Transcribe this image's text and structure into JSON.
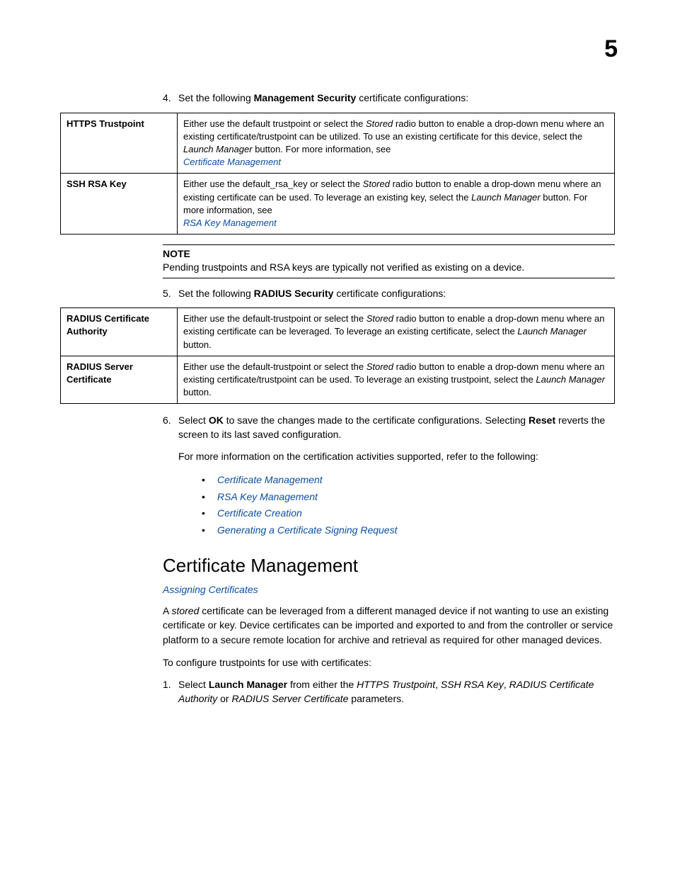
{
  "chapter_number": "5",
  "step4": {
    "num": "4.",
    "pre": "Set the following ",
    "bold": "Management Security",
    "post": " certificate configurations:"
  },
  "table1": {
    "rows": [
      {
        "label": "HTTPS Trustpoint",
        "t1": "Either use the default trustpoint or select the ",
        "i1": "Stored",
        "t2": " radio button to enable a drop-down menu where an existing certificate/trustpoint can be utilized. To use an existing certificate for this device, select the ",
        "i2": "Launch Manager",
        "t3": " button. For more information, see",
        "link": "Certificate Management"
      },
      {
        "label": "SSH RSA Key",
        "t1": "Either use the default_rsa_key or select the ",
        "i1": "Stored",
        "t2": " radio button to enable a drop-down menu where an existing certificate can be used. To leverage an existing key, select the ",
        "i2": "Launch Manager",
        "t3": " button. For more information, see",
        "link": "RSA Key Management"
      }
    ]
  },
  "note": {
    "title": "NOTE",
    "text": "Pending trustpoints and RSA keys are typically not verified as existing on a device."
  },
  "step5": {
    "num": "5.",
    "pre": "Set the following ",
    "bold": "RADIUS Security",
    "post": " certificate configurations:"
  },
  "table2": {
    "rows": [
      {
        "label": "RADIUS Certificate Authority",
        "t1": "Either use the default-trustpoint or select the ",
        "i1": "Stored",
        "t2": " radio button to enable a drop-down menu where an existing certificate can be leveraged. To leverage an existing certificate, select the ",
        "i2": "Launch Manager",
        "t3": " button."
      },
      {
        "label": "RADIUS Server Certificate",
        "t1": "Either use the default-trustpoint or select the ",
        "i1": "Stored",
        "t2": " radio button to enable a drop-down menu where an existing certificate/trustpoint can be used. To leverage an existing trustpoint, select the ",
        "i2": "Launch Manager",
        "t3": " button."
      }
    ]
  },
  "step6": {
    "num": "6.",
    "t1": "Select ",
    "b1": "OK",
    "t2": " to save the changes made to the certificate configurations. Selecting ",
    "b2": "Reset",
    "t3": " reverts the screen to its last saved configuration."
  },
  "info_line": "For more information on the certification activities supported, refer to the following:",
  "bullets": [
    "Certificate Management",
    "RSA Key Management",
    "Certificate Creation",
    "Generating a Certificate Signing Request"
  ],
  "section_heading": "Certificate Management",
  "section_sublink": "Assigning Certificates",
  "cm_para": {
    "t1": "A ",
    "i1": "stored",
    "t2": " certificate can be leveraged from a different managed device if not wanting to use an existing certificate or key. Device certificates can be imported and exported to and from the controller or service platform to a secure remote location for archive and retrieval as required for other managed devices."
  },
  "cm_para2": "To configure trustpoints for use with certificates:",
  "cm_step1": {
    "num": "1.",
    "t1": "Select ",
    "b1": "Launch Manager",
    "t2": " from either the ",
    "i1": "HTTPS Trustpoint",
    "t3": ", ",
    "i2": "SSH RSA Key",
    "t4": ", ",
    "i3": "RADIUS Certificate Authority",
    "t5": " or ",
    "i4": "RADIUS Server Certificate",
    "t6": " parameters."
  }
}
